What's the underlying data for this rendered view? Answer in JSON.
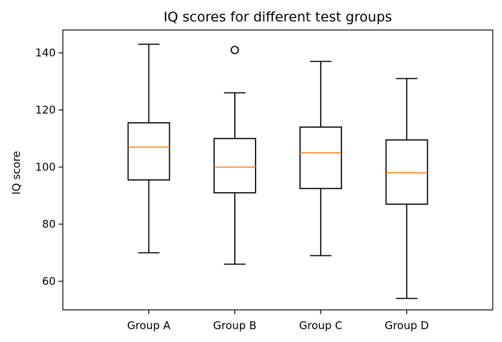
{
  "chart_data": {
    "type": "box",
    "title": "IQ scores for different test groups",
    "xlabel": "",
    "ylabel": "IQ score",
    "ylim": [
      50,
      148
    ],
    "yticks": [
      60,
      80,
      100,
      120,
      140
    ],
    "grid": false,
    "categories": [
      "Group A",
      "Group B",
      "Group C",
      "Group D"
    ],
    "boxes": [
      {
        "whisker_low": 70,
        "q1": 95.5,
        "median": 107,
        "q3": 115.5,
        "whisker_high": 143,
        "outliers": []
      },
      {
        "whisker_low": 66,
        "q1": 91,
        "median": 100,
        "q3": 110,
        "whisker_high": 126,
        "outliers": [
          141
        ]
      },
      {
        "whisker_low": 69,
        "q1": 92.5,
        "median": 105,
        "q3": 114,
        "whisker_high": 137,
        "outliers": []
      },
      {
        "whisker_low": 54,
        "q1": 87,
        "median": 98,
        "q3": 109.5,
        "whisker_high": 131,
        "outliers": []
      }
    ],
    "colors": {
      "box": "#000000",
      "median": "#ff7f0e"
    }
  }
}
